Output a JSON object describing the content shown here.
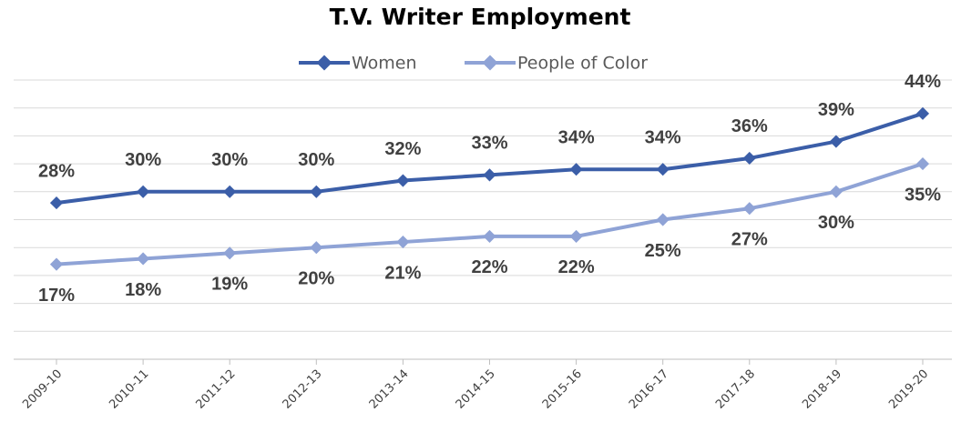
{
  "chart_data": {
    "type": "line",
    "title": "T.V. Writer Employment",
    "categories": [
      "2009-10",
      "2010-11",
      "2011-12",
      "2012-13",
      "2013-14",
      "2014-15",
      "2015-16",
      "2016-17",
      "2017-18",
      "2018-19",
      "2019-20"
    ],
    "series": [
      {
        "name": "Women",
        "color": "#3b5ea8",
        "values": [
          28,
          30,
          30,
          30,
          32,
          33,
          34,
          34,
          36,
          39,
          44
        ],
        "value_labels": [
          "28%",
          "30%",
          "30%",
          "30%",
          "32%",
          "33%",
          "34%",
          "34%",
          "36%",
          "39%",
          "44%"
        ]
      },
      {
        "name": "People of Color",
        "color": "#8fa3d6",
        "values": [
          17,
          18,
          19,
          20,
          21,
          22,
          22,
          25,
          27,
          30,
          35
        ],
        "value_labels": [
          "17%",
          "18%",
          "19%",
          "20%",
          "21%",
          "22%",
          "22%",
          "25%",
          "27%",
          "30%",
          "35%"
        ]
      }
    ],
    "ylim": [
      0,
      50
    ],
    "yticks": [
      0,
      5,
      10,
      15,
      20,
      25,
      30,
      35,
      40,
      45,
      50
    ],
    "grid": true,
    "legend": "top"
  }
}
